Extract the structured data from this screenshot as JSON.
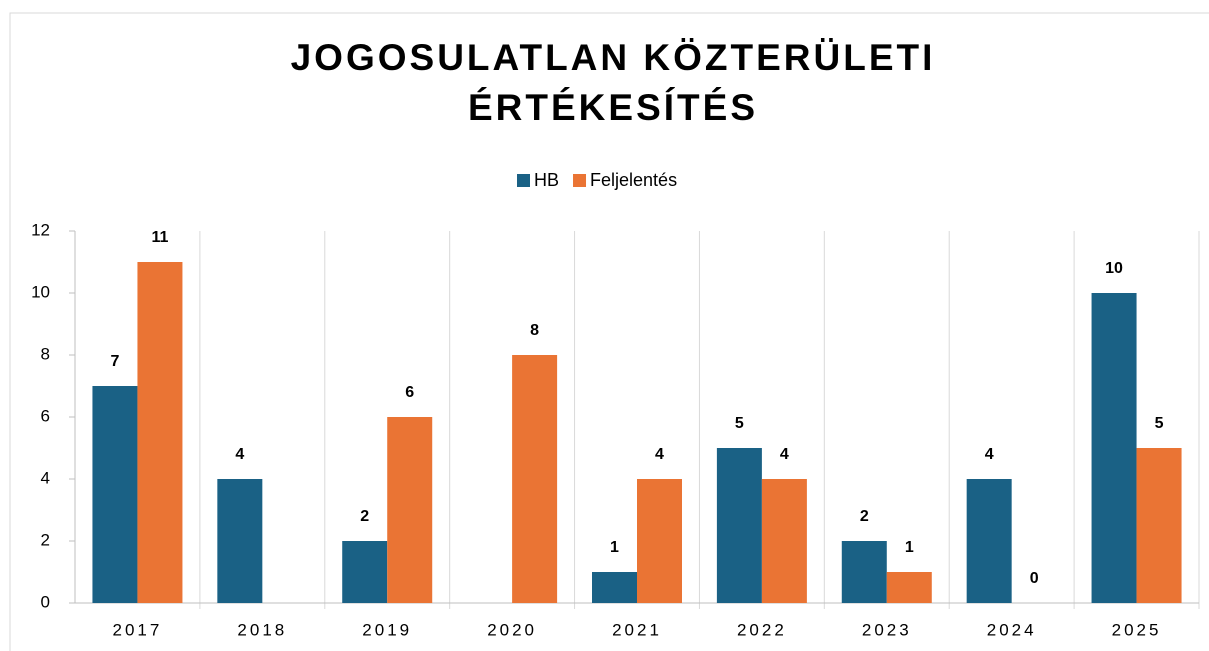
{
  "chart_data": {
    "type": "bar",
    "title": [
      "JOGOSULATLAN KÖZTERÜLETI",
      "ÉRTÉKESÍTÉS"
    ],
    "categories": [
      "2017",
      "2018",
      "2019",
      "2020",
      "2021",
      "2022",
      "2023",
      "2024",
      "2025"
    ],
    "series": [
      {
        "name": "HB",
        "color": "#1a6185",
        "values": [
          7,
          4,
          2,
          null,
          1,
          5,
          2,
          4,
          10
        ]
      },
      {
        "name": "Feljelentés",
        "color": "#ea7434",
        "values": [
          11,
          null,
          6,
          8,
          4,
          4,
          1,
          0,
          5
        ]
      }
    ],
    "ylim": [
      0,
      12
    ],
    "yticks": [
      0,
      2,
      4,
      6,
      8,
      10,
      12
    ],
    "legend": "top"
  }
}
